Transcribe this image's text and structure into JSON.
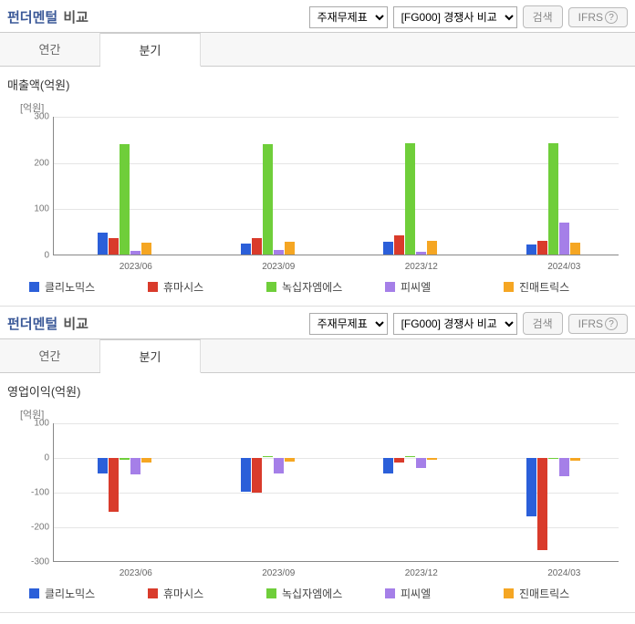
{
  "panels": [
    {
      "title_main": "펀더멘털",
      "title_sub": "비교",
      "select1": "주재무제표",
      "select2": "[FG000] 경쟁사 비교",
      "btn_search": "검색",
      "btn_ifrs": "IFRS",
      "tabs": {
        "annual": "연간",
        "quarter": "분기",
        "active": "quarter"
      },
      "chart_title": "매출액(억원)",
      "y_unit": "[억원]",
      "chart": {
        "ylim": [
          0,
          300
        ],
        "ytick_step": 100,
        "yticks": [
          0,
          100,
          200,
          300
        ],
        "categories": [
          "2023/06",
          "2023/09",
          "2023/12",
          "2024/03"
        ],
        "series": [
          {
            "name": "클리노믹스",
            "color": "#2b5fd9",
            "values": [
              48,
              24,
              28,
              22
            ]
          },
          {
            "name": "휴마시스",
            "color": "#d93b2b",
            "values": [
              36,
              36,
              42,
              30
            ]
          },
          {
            "name": "녹십자엠에스",
            "color": "#6fce3a",
            "values": [
              238,
              238,
              240,
              240
            ]
          },
          {
            "name": "피씨엘",
            "color": "#a57fe8",
            "values": [
              8,
              10,
              6,
              70
            ]
          },
          {
            "name": "진매트릭스",
            "color": "#f5a623",
            "values": [
              26,
              28,
              30,
              26
            ]
          }
        ]
      }
    },
    {
      "title_main": "펀더멘털",
      "title_sub": "비교",
      "select1": "주재무제표",
      "select2": "[FG000] 경쟁사 비교",
      "btn_search": "검색",
      "btn_ifrs": "IFRS",
      "tabs": {
        "annual": "연간",
        "quarter": "분기",
        "active": "quarter"
      },
      "chart_title": "영업이익(억원)",
      "y_unit": "[억원]",
      "chart": {
        "ylim": [
          -300,
          100
        ],
        "ytick_step": 100,
        "yticks": [
          -300,
          -200,
          -100,
          0,
          100
        ],
        "categories": [
          "2023/06",
          "2023/09",
          "2023/12",
          "2024/03"
        ],
        "series": [
          {
            "name": "클리노믹스",
            "color": "#2b5fd9",
            "values": [
              -45,
              -98,
              -46,
              -168
            ]
          },
          {
            "name": "휴마시스",
            "color": "#d93b2b",
            "values": [
              -155,
              -100,
              -12,
              -265
            ]
          },
          {
            "name": "녹십자엠에스",
            "color": "#6fce3a",
            "values": [
              -6,
              3,
              2,
              -2
            ]
          },
          {
            "name": "피씨엘",
            "color": "#a57fe8",
            "values": [
              -48,
              -45,
              -30,
              -52
            ]
          },
          {
            "name": "진매트릭스",
            "color": "#f5a623",
            "values": [
              -12,
              -10,
              -5,
              -8
            ]
          }
        ]
      }
    }
  ]
}
